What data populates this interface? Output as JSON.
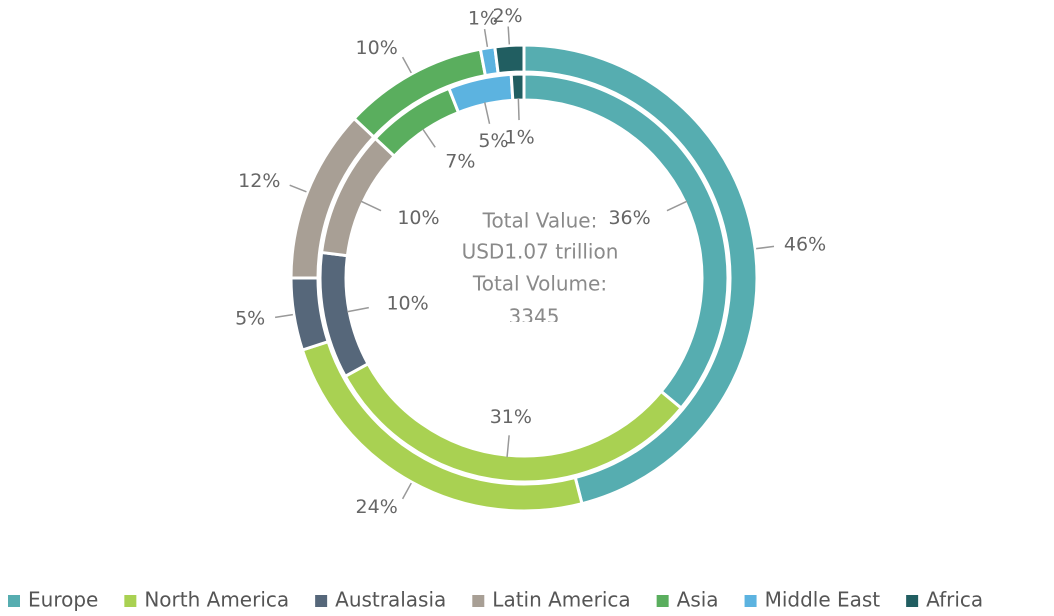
{
  "chart_data": {
    "type": "donut",
    "annotations": [
      "Total Value:",
      "USD1.07 trillion",
      "Total Volume:",
      "3345"
    ],
    "categories": [
      "Europe",
      "North America",
      "Australasia",
      "Latin America",
      "Asia",
      "Middle East",
      "Africa"
    ],
    "colors": [
      "#56adb0",
      "#a9d152",
      "#56677a",
      "#a89f95",
      "#5aae5e",
      "#5cb3e0",
      "#215e61"
    ],
    "series": [
      {
        "values": [
          46,
          24,
          5,
          12,
          10,
          1,
          2
        ],
        "value_labels": [
          "46%",
          "24%",
          "5%",
          "12%",
          "10%",
          "1%",
          "2%"
        ]
      },
      {
        "values": [
          36,
          31,
          10,
          10,
          7,
          5,
          1
        ],
        "value_labels": [
          "36%",
          "31%",
          "10%",
          "10%",
          "7%",
          "5%",
          "1%"
        ]
      }
    ],
    "legend": "bottom"
  }
}
